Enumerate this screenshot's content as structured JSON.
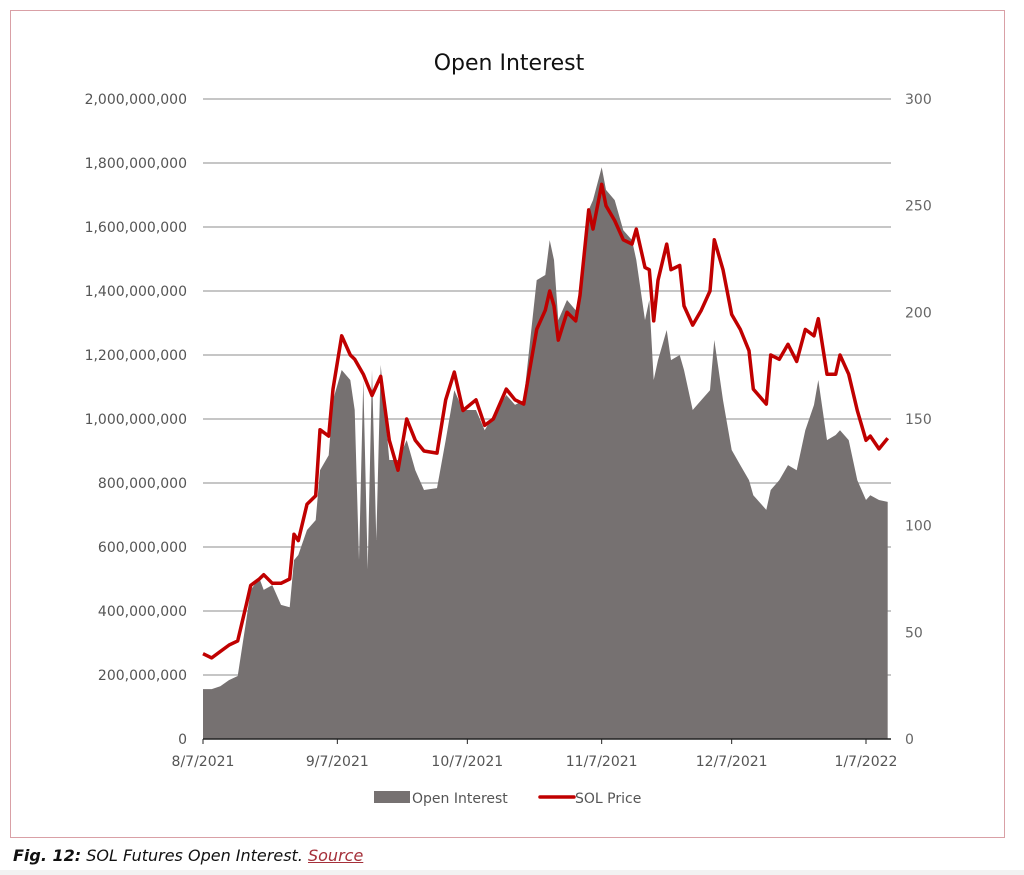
{
  "chart_data": {
    "type": "area+line",
    "title": "Open Interest",
    "x_start_date": "8/7/2021",
    "x_unit": "days since 8/7/2021",
    "x_tick_labels": [
      "8/7/2021",
      "9/7/2021",
      "10/7/2021",
      "11/7/2021",
      "12/7/2021",
      "1/7/2022"
    ],
    "x_tick_days": [
      0,
      31,
      61,
      92,
      122,
      153
    ],
    "xlim": [
      0,
      158
    ],
    "y_left": {
      "ylim": [
        0,
        2000000000
      ],
      "tick_labels": [
        "0",
        "200,000,000",
        "400,000,000",
        "600,000,000",
        "800,000,000",
        "1,000,000,000",
        "1,200,000,000",
        "1,400,000,000",
        "1,600,000,000",
        "1,800,000,000",
        "2,000,000,000"
      ],
      "tick_values": [
        0,
        200000000,
        400000000,
        600000000,
        800000000,
        1000000000,
        1200000000,
        1400000000,
        1600000000,
        1800000000,
        2000000000
      ]
    },
    "y_right": {
      "ylim": [
        0,
        300
      ],
      "tick_labels": [
        "0",
        "50",
        "100",
        "150",
        "200",
        "250",
        "300"
      ],
      "tick_values": [
        0,
        50,
        100,
        150,
        200,
        250,
        300
      ]
    },
    "grid": true,
    "legend_position": "bottom",
    "series": [
      {
        "name": "Open Interest",
        "type": "area",
        "axis": "left",
        "color": "#767171",
        "x": [
          0,
          2,
          4,
          6,
          8,
          10,
          11,
          13,
          14,
          16,
          18,
          20,
          21,
          22,
          24,
          26,
          27,
          29,
          30,
          32,
          34,
          35,
          36,
          37,
          38,
          39,
          40,
          41,
          43,
          45,
          47,
          49,
          51,
          54,
          56,
          58,
          60,
          63,
          65,
          67,
          70,
          72,
          74,
          77,
          79,
          80,
          81,
          82,
          84,
          86,
          87,
          89,
          90,
          92,
          93,
          95,
          97,
          99,
          100,
          102,
          103,
          104,
          105,
          107,
          108,
          110,
          111,
          113,
          115,
          117,
          118,
          120,
          122,
          124,
          126,
          127,
          130,
          131,
          133,
          135,
          137,
          139,
          141,
          142,
          144,
          146,
          147,
          149,
          151,
          153,
          154,
          156,
          158
        ],
        "values_millions": [
          156,
          156,
          165,
          184,
          197,
          372,
          466,
          503,
          466,
          481,
          419,
          412,
          559,
          575,
          653,
          684,
          840,
          887,
          1059,
          1153,
          1122,
          1028,
          559,
          1122,
          530,
          1153,
          622,
          1169,
          872,
          872,
          934,
          840,
          778,
          784,
          934,
          1090,
          1028,
          1028,
          965,
          1012,
          1075,
          1044,
          1059,
          1434,
          1450,
          1559,
          1497,
          1309,
          1372,
          1340,
          1403,
          1653,
          1684,
          1787,
          1716,
          1684,
          1590,
          1559,
          1497,
          1309,
          1372,
          1122,
          1184,
          1278,
          1184,
          1200,
          1153,
          1028,
          1059,
          1090,
          1247,
          1059,
          903,
          856,
          809,
          762,
          716,
          778,
          809,
          856,
          840,
          965,
          1044,
          1122,
          934,
          950,
          965,
          934,
          809,
          747,
          762,
          747,
          741
        ]
      },
      {
        "name": "SOL Price",
        "type": "line",
        "axis": "right",
        "color": "#c00000",
        "x": [
          0,
          2,
          4,
          6,
          8,
          10,
          11,
          13,
          14,
          16,
          18,
          20,
          21,
          22,
          24,
          26,
          27,
          29,
          30,
          32,
          34,
          35,
          37,
          39,
          41,
          43,
          45,
          47,
          49,
          51,
          54,
          56,
          58,
          60,
          63,
          65,
          67,
          70,
          72,
          74,
          77,
          79,
          80,
          81,
          82,
          84,
          86,
          87,
          89,
          90,
          92,
          93,
          95,
          97,
          99,
          100,
          102,
          103,
          104,
          105,
          107,
          108,
          110,
          111,
          113,
          115,
          117,
          118,
          120,
          122,
          124,
          126,
          127,
          130,
          131,
          133,
          135,
          137,
          139,
          141,
          142,
          144,
          146,
          147,
          149,
          151,
          153,
          154,
          156,
          158
        ],
        "values": [
          40,
          38,
          41,
          44,
          46,
          63,
          72,
          75,
          77,
          73,
          73,
          75,
          96,
          93,
          110,
          114,
          145,
          142,
          164,
          189,
          180,
          178,
          171,
          161,
          170,
          140,
          126,
          150,
          140,
          135,
          134,
          159,
          172,
          154,
          159,
          147,
          150,
          164,
          159,
          157,
          192,
          201,
          210,
          203,
          187,
          200,
          196,
          208,
          248,
          239,
          260,
          250,
          243,
          234,
          232,
          239,
          221,
          220,
          196,
          215,
          232,
          220,
          222,
          203,
          194,
          201,
          210,
          234,
          220,
          199,
          192,
          182,
          164,
          157,
          180,
          178,
          185,
          177,
          192,
          189,
          197,
          171,
          171,
          180,
          171,
          154,
          140,
          142,
          136,
          141
        ]
      }
    ]
  },
  "caption": {
    "label": "Fig. 12:",
    "text": " SOL Futures Open Interest. ",
    "link": "Source"
  }
}
